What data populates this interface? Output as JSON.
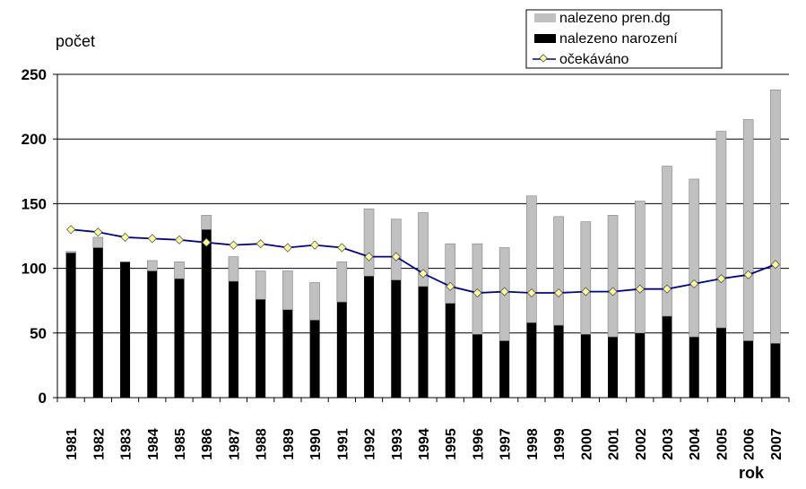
{
  "chart_data": {
    "type": "bar",
    "stacked": true,
    "title": "",
    "ylabel": "počet",
    "xlabel": "rok",
    "ylim": [
      0,
      250
    ],
    "yticks": [
      0,
      50,
      100,
      150,
      200,
      250
    ],
    "grid": true,
    "legend_position": "top-right",
    "categories": [
      "1981",
      "1982",
      "1983",
      "1984",
      "1985",
      "1986",
      "1987",
      "1988",
      "1989",
      "1990",
      "1991",
      "1992",
      "1993",
      "1994",
      "1995",
      "1996",
      "1997",
      "1998",
      "1999",
      "2000",
      "2001",
      "2002",
      "2003",
      "2004",
      "2005",
      "2006",
      "2007"
    ],
    "series": [
      {
        "name": "nalezeno narození",
        "type": "bar",
        "color": "#000000",
        "values": [
          112,
          116,
          105,
          98,
          92,
          130,
          90,
          76,
          68,
          60,
          74,
          94,
          91,
          86,
          73,
          49,
          44,
          58,
          56,
          49,
          47,
          50,
          63,
          47,
          54,
          44,
          42
        ]
      },
      {
        "name": "nalezeno pren.dg",
        "type": "bar",
        "color": "#c0c0c0",
        "values": [
          1,
          8,
          0,
          8,
          13,
          11,
          19,
          22,
          30,
          29,
          31,
          52,
          47,
          57,
          46,
          70,
          72,
          98,
          84,
          87,
          94,
          102,
          116,
          122,
          152,
          171,
          196
        ]
      },
      {
        "name": "očekáváno",
        "type": "line",
        "color": "#00008b",
        "marker_color": "#ffff99",
        "values": [
          130,
          128,
          124,
          123,
          122,
          120,
          118,
          119,
          116,
          118,
          116,
          109,
          109,
          96,
          86,
          81,
          82,
          81,
          81,
          82,
          82,
          84,
          84,
          88,
          92,
          95,
          103
        ]
      }
    ]
  }
}
